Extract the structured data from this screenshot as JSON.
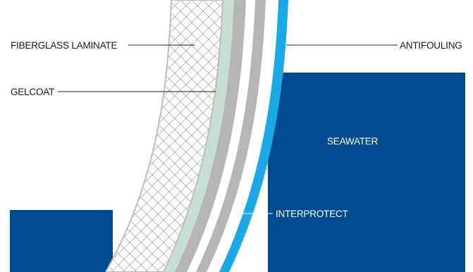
{
  "labels": {
    "fiberglass": "FIBERGLASS LAMINATE",
    "gelcoat": "GELCOAT",
    "antifouling": "ANTIFOULING",
    "seawater": "SEAWATER",
    "interprotect": "INTERPROTECT"
  },
  "colors": {
    "seawater": "#004a8f",
    "antifouling": "#1ba8e6",
    "gelcoat": "#c7dfd2",
    "primer_grey": "#b5b5b5",
    "laminate_line": "#bdbdbd",
    "background": "#ffffff"
  }
}
